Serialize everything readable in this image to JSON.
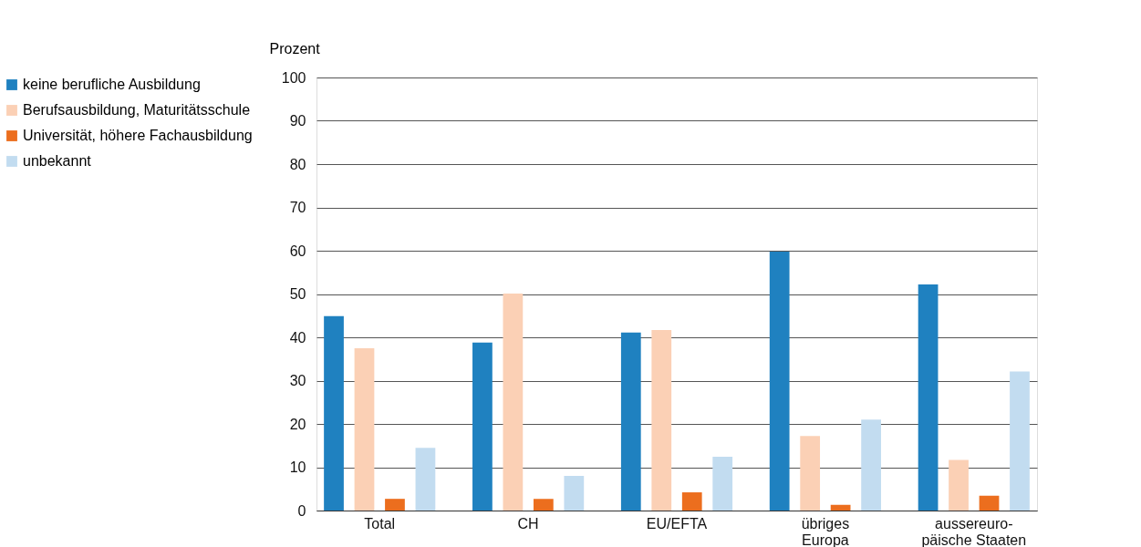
{
  "chart_data": {
    "type": "bar",
    "ylabel": "Prozent",
    "categories": [
      "Total",
      "CH",
      "EU/EFTA",
      "übriges\nEuropa",
      "aussereuro-\npäische Staaten"
    ],
    "series": [
      {
        "name": "keine berufliche Ausbildung",
        "color": "#1f81c0",
        "values": [
          44.9,
          38.8,
          41.1,
          59.8,
          52.2
        ]
      },
      {
        "name": "Berufsausbildung, Maturitätsschule",
        "color": "#fbd0b5",
        "values": [
          37.5,
          50.1,
          41.7,
          17.2,
          11.7
        ]
      },
      {
        "name": "Universität, höhere Fachausbildung",
        "color": "#ec6e1e",
        "values": [
          2.7,
          2.7,
          4.2,
          1.3,
          3.4
        ]
      },
      {
        "name": "unbekannt",
        "color": "#c2dcf0",
        "values": [
          14.5,
          8.0,
          12.4,
          21.0,
          32.1
        ]
      }
    ],
    "ylim": [
      0,
      100
    ],
    "yticks": [
      0,
      10,
      20,
      30,
      40,
      50,
      60,
      70,
      80,
      90,
      100
    ],
    "grid": "y",
    "legend": "left"
  }
}
